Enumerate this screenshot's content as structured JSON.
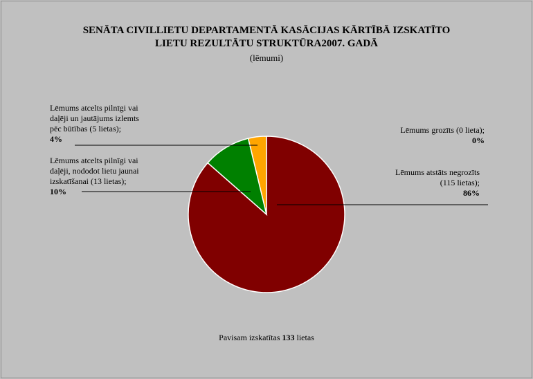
{
  "title_line1": "SENĀTA CIVILLIETU DEPARTAMENTĀ KASĀCIJAS KĀRTĪBĀ IZSKATĪTO",
  "title_line2": "LIETU REZULTĀTU STRUKTŪRA2007. GADĀ",
  "subtitle": "(lēmumi)",
  "labels": {
    "partial": {
      "line1": "Lēmums atcelts pilnīgi  vai",
      "line2": "daļēji un jautājums izlemts",
      "line3": "pēc būtības (5 lietas);",
      "pct": "4%"
    },
    "new_review": {
      "line1": "Lēmums atcelts pilnīgi  vai",
      "line2": "daļēji, nododot lietu jaunai",
      "line3": "izskatīšanai (13 lietas);",
      "pct": "10%"
    },
    "changed": {
      "line1": "Lēmums grozīts (0 lieta);",
      "pct": "0%"
    },
    "unchanged": {
      "line1": "Lēmums atstāts negrozīts",
      "line2": "(115 lietas);",
      "pct": "86%"
    }
  },
  "total": {
    "prefix": "Pavisam izskatītas",
    "count": "133",
    "suffix": "lietas"
  },
  "chart_data": {
    "type": "pie",
    "slices": [
      {
        "label": "Lēmums atcelts pilnīgi vai daļēji un jautājums izlemts pēc būtības (5 lietas)",
        "value": 5,
        "percent": 4,
        "color": "#ffa500"
      },
      {
        "label": "Lēmums grozīts (0 lieta)",
        "value": 0,
        "percent": 0,
        "color": "#ffff00"
      },
      {
        "label": "Lēmums atstāts negrozīts (115 lietas)",
        "value": 115,
        "percent": 86,
        "color": "#800000"
      },
      {
        "label": "Lēmums atcelts pilnīgi vai daļēji, nododot lietu jaunai izskatīšanai (13 lietas)",
        "value": 13,
        "percent": 10,
        "color": "#008000"
      }
    ]
  }
}
